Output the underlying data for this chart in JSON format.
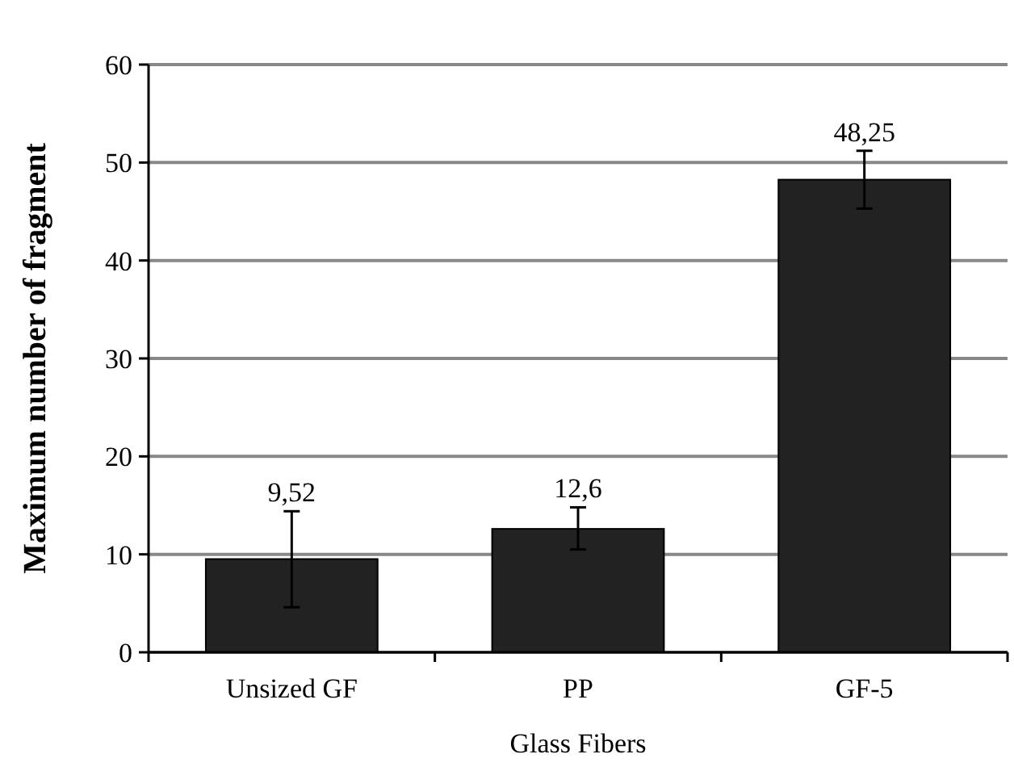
{
  "chart_data": {
    "type": "bar",
    "xlabel": "Glass Fibers",
    "ylabel": "Maximum number of fragment",
    "categories": [
      "Unsized GF",
      "PP",
      "GF-5"
    ],
    "values": [
      9.52,
      12.6,
      48.25
    ],
    "color": "#222222",
    "errors": [
      [
        4.6,
        14.4
      ],
      [
        10.5,
        14.8
      ],
      [
        45.3,
        51.2
      ]
    ],
    "value_labels": [
      "9,52",
      "12,6",
      "48,25"
    ],
    "ylim": [
      0,
      60
    ],
    "yticks": [
      0,
      10,
      20,
      30,
      40,
      50,
      60
    ],
    "grid": "y"
  }
}
